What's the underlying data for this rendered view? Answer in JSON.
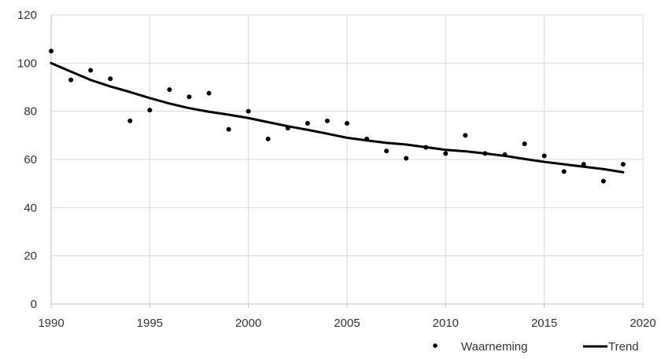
{
  "chart_data": {
    "type": "scatter",
    "title": "",
    "xlabel": "",
    "ylabel": "",
    "xlim": [
      1990,
      2020
    ],
    "ylim": [
      0,
      120
    ],
    "x_ticks": [
      "1990",
      "1995",
      "2000",
      "2005",
      "2010",
      "2015",
      "2020"
    ],
    "y_ticks": [
      "0",
      "20",
      "40",
      "60",
      "80",
      "100",
      "120"
    ],
    "grid": true,
    "legend_position": "bottom-right",
    "series": [
      {
        "name": "Waarneming",
        "kind": "points",
        "color": "#000000",
        "x": [
          1990,
          1991,
          1992,
          1993,
          1994,
          1995,
          1996,
          1997,
          1998,
          1999,
          2000,
          2001,
          2002,
          2003,
          2004,
          2005,
          2006,
          2007,
          2008,
          2009,
          2010,
          2011,
          2012,
          2013,
          2014,
          2015,
          2016,
          2017,
          2018,
          2019
        ],
        "y": [
          105,
          93,
          97,
          93.5,
          76,
          80.5,
          89,
          86,
          87.5,
          72.5,
          80,
          68.5,
          73,
          75,
          76,
          75,
          68.5,
          63.5,
          60.5,
          65,
          62.5,
          70,
          62.5,
          62,
          66.5,
          61.5,
          55,
          58,
          51,
          58
        ]
      },
      {
        "name": "Trend",
        "kind": "line",
        "color": "#000000",
        "x": [
          1990,
          1991,
          1992,
          1993,
          1994,
          1995,
          1996,
          1997,
          1998,
          1999,
          2000,
          2001,
          2002,
          2003,
          2004,
          2005,
          2006,
          2007,
          2008,
          2009,
          2010,
          2011,
          2012,
          2013,
          2014,
          2015,
          2016,
          2017,
          2018,
          2019
        ],
        "y": [
          100,
          96.5,
          93,
          90.3,
          88,
          85.5,
          83.2,
          81.3,
          79.8,
          78.6,
          77.2,
          75.5,
          73.8,
          72.3,
          70.7,
          69,
          67.9,
          66.9,
          66.2,
          65.1,
          64,
          63.4,
          62.5,
          61.5,
          60.2,
          59,
          58,
          57,
          56,
          54.7
        ]
      }
    ]
  }
}
